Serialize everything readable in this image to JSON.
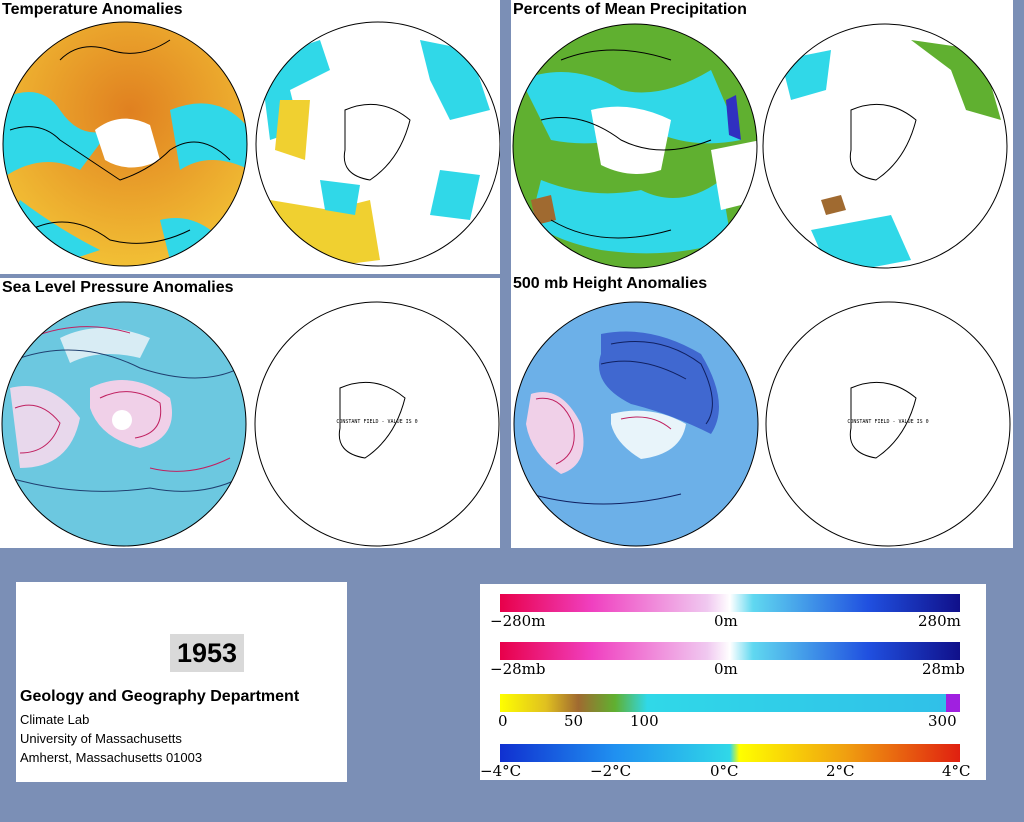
{
  "panels": [
    {
      "title": "Temperature Anomalies"
    },
    {
      "title": "Percents of Mean Precipitation"
    },
    {
      "title": "Sea Level Pressure Anomalies"
    },
    {
      "title": "500 mb Height Anomalies"
    }
  ],
  "constant_field_note": "CONSTANT FIELD - VALUE IS 0",
  "info": {
    "year": "1953",
    "department": "Geology and Geography Department",
    "line1": "Climate Lab",
    "line2": "University of Massachusetts",
    "line3": "Amherst, Massachusetts 01003"
  },
  "legends": {
    "height": {
      "left": "−280m",
      "mid": "0m",
      "right": "280m"
    },
    "pressure": {
      "left": "−28mb",
      "mid": "0m",
      "right": "28mb"
    },
    "precip": {
      "l0": "0",
      "l50": "50",
      "l100": "100",
      "l300": "300"
    },
    "temp": {
      "l1": "−4°C",
      "l2": "−2°C",
      "l3": "0°C",
      "l4": "2°C",
      "l5": "4°C"
    }
  },
  "colors": {
    "background": "#7b8fb6",
    "anomaly_warm": "#f0c030",
    "anomaly_cool": "#30d8e8",
    "precip_green": "#60b030",
    "pressure_pink": "#c02060",
    "height_blue": "#3050c0"
  }
}
